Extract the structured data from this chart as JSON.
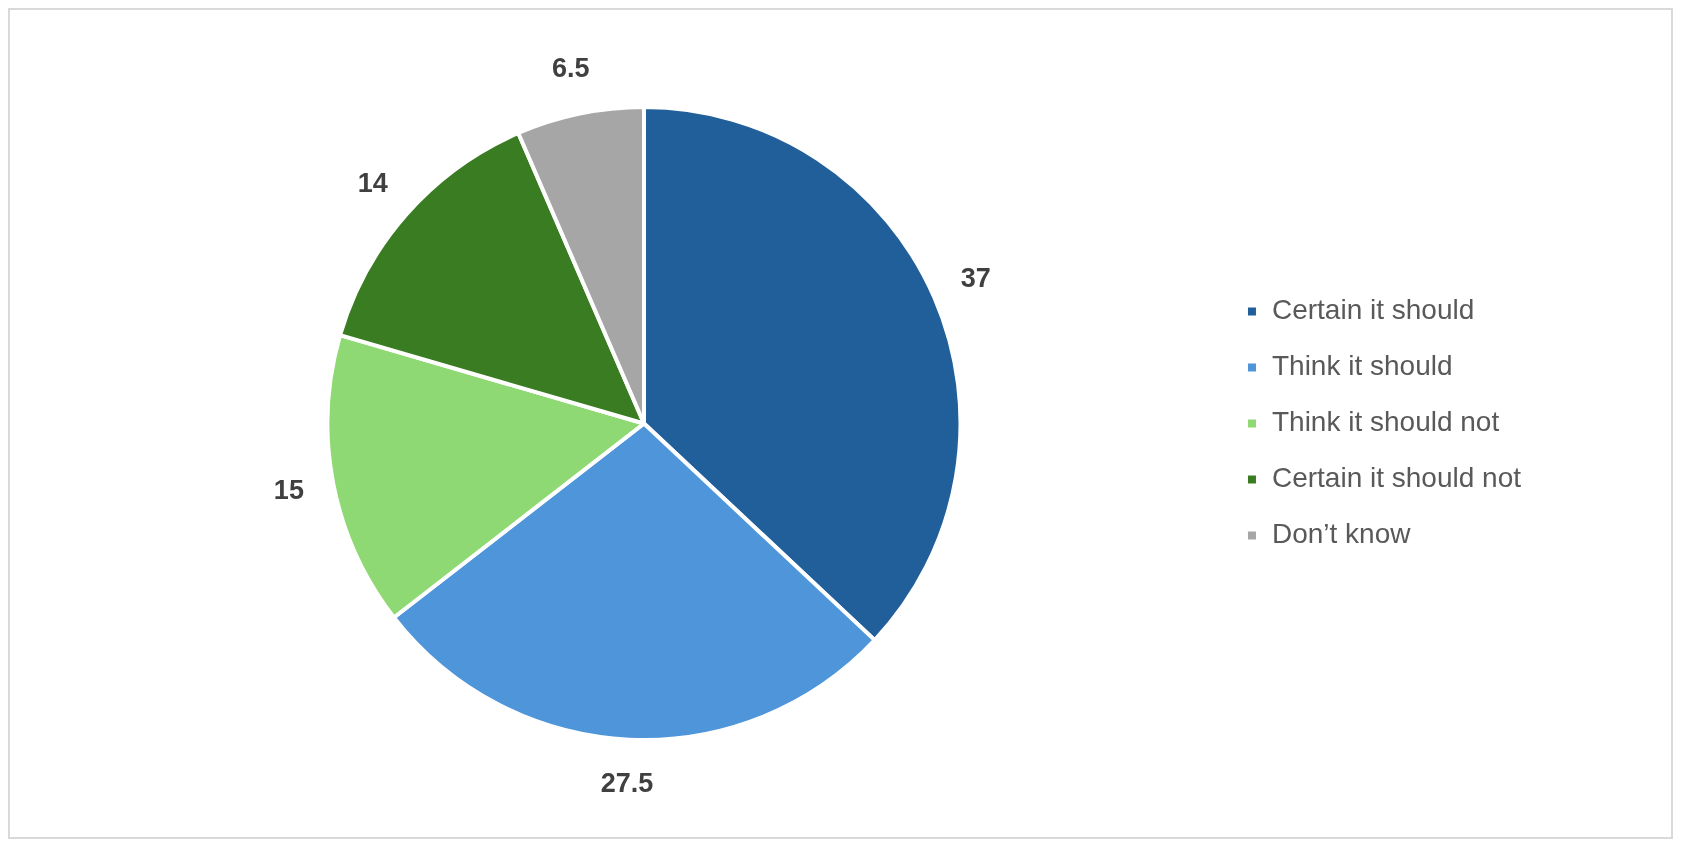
{
  "chart_data": {
    "type": "pie",
    "categories": [
      "Certain it should",
      "Think it should",
      "Think it should not",
      "Certain it should not",
      "Don’t know"
    ],
    "values": [
      37,
      27.5,
      15,
      14,
      6.5
    ],
    "colors": [
      "#215f9a",
      "#4e95d9",
      "#8ed973",
      "#3a7c22",
      "#a6a6a6"
    ],
    "data_labels": true,
    "legend": "right"
  }
}
